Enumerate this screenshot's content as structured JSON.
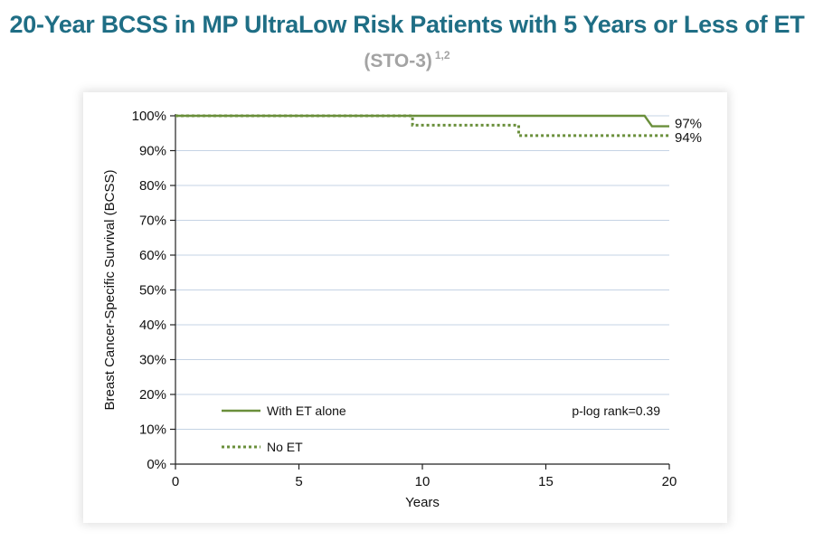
{
  "title": "20-Year BCSS in MP UltraLow Risk Patients with 5 Years or Less of ET",
  "subtitle": "(STO-3)",
  "subtitle_refs": "1,2",
  "chart_data": {
    "type": "line",
    "title": "20-Year BCSS in MP UltraLow Risk Patients with 5 Years or Less of ET",
    "xlabel": "Years",
    "ylabel": "Breast Cancer-Specific Survival (BCSS)",
    "xlim": [
      0,
      20
    ],
    "ylim": [
      0,
      100
    ],
    "x_ticks": [
      0,
      5,
      10,
      15,
      20
    ],
    "y_ticks": [
      0,
      10,
      20,
      30,
      40,
      50,
      60,
      70,
      80,
      90,
      100
    ],
    "y_tick_labels": [
      "0%",
      "10%",
      "20%",
      "30%",
      "40%",
      "50%",
      "60%",
      "70%",
      "80%",
      "90%",
      "100%"
    ],
    "grid": "horizontal",
    "series": [
      {
        "name": "With ET alone",
        "style": "solid",
        "color": "#6a8f3b",
        "x": [
          0,
          19.0,
          19.3,
          20
        ],
        "y": [
          100,
          100,
          97,
          97
        ],
        "end_label": "97%"
      },
      {
        "name": "No ET",
        "style": "dotted",
        "color": "#6a8f3b",
        "x": [
          0,
          9.6,
          9.6,
          13.9,
          13.9,
          20
        ],
        "y": [
          100,
          100,
          97.3,
          97.3,
          94.3,
          94.3
        ],
        "end_label": "94%"
      }
    ],
    "legend": [
      "With ET alone",
      "No ET"
    ],
    "legend_position": "bottom-left",
    "annotation": "p-log rank=0.39"
  }
}
